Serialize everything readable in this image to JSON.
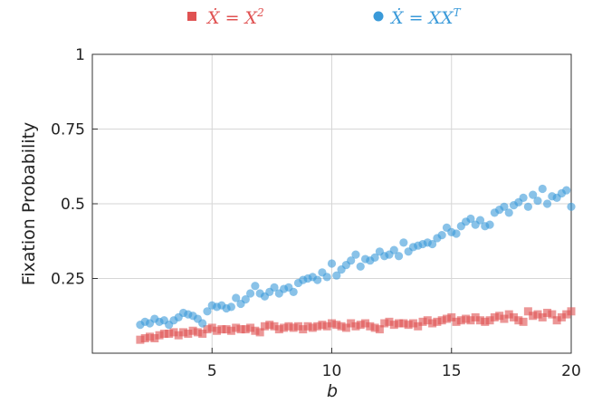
{
  "chart_data": {
    "type": "scatter",
    "xlabel": "b",
    "ylabel": "Fixation Probability",
    "xlim": [
      0,
      20
    ],
    "ylim": [
      0,
      1
    ],
    "xticks": [
      5,
      10,
      15,
      20
    ],
    "yticks": [
      0.25,
      0.5,
      0.75,
      1
    ],
    "xtick_labels": [
      "5",
      "10",
      "15",
      "20"
    ],
    "ytick_labels": [
      "0.25",
      "0.5",
      "0.75",
      "1"
    ],
    "grid": true,
    "legend_position": "top",
    "series": [
      {
        "name": "Ẋ = X²",
        "name_base": "Ẋ = X",
        "name_sup": "2",
        "marker": "square",
        "color": "#e05252",
        "x": [
          2.0,
          2.2,
          2.4,
          2.6,
          2.8,
          3.0,
          3.2,
          3.4,
          3.6,
          3.8,
          4.0,
          4.2,
          4.4,
          4.6,
          4.8,
          5.0,
          5.2,
          5.4,
          5.6,
          5.8,
          6.0,
          6.2,
          6.4,
          6.6,
          6.8,
          7.0,
          7.2,
          7.4,
          7.6,
          7.8,
          8.0,
          8.2,
          8.4,
          8.6,
          8.8,
          9.0,
          9.2,
          9.4,
          9.6,
          9.8,
          10.0,
          10.2,
          10.4,
          10.6,
          10.8,
          11.0,
          11.2,
          11.4,
          11.6,
          11.8,
          12.0,
          12.2,
          12.4,
          12.6,
          12.8,
          13.0,
          13.2,
          13.4,
          13.6,
          13.8,
          14.0,
          14.2,
          14.4,
          14.6,
          14.8,
          15.0,
          15.2,
          15.4,
          15.6,
          15.8,
          16.0,
          16.2,
          16.4,
          16.6,
          16.8,
          17.0,
          17.2,
          17.4,
          17.6,
          17.8,
          18.0,
          18.2,
          18.4,
          18.6,
          18.8,
          19.0,
          19.2,
          19.4,
          19.6,
          19.8,
          20.0
        ],
        "y": [
          0.045,
          0.05,
          0.055,
          0.05,
          0.06,
          0.065,
          0.065,
          0.07,
          0.06,
          0.07,
          0.065,
          0.075,
          0.07,
          0.065,
          0.08,
          0.085,
          0.075,
          0.08,
          0.08,
          0.075,
          0.085,
          0.08,
          0.08,
          0.085,
          0.075,
          0.07,
          0.09,
          0.095,
          0.09,
          0.08,
          0.085,
          0.09,
          0.085,
          0.09,
          0.08,
          0.09,
          0.085,
          0.09,
          0.095,
          0.09,
          0.1,
          0.095,
          0.09,
          0.085,
          0.1,
          0.09,
          0.095,
          0.1,
          0.09,
          0.085,
          0.08,
          0.1,
          0.105,
          0.095,
          0.1,
          0.1,
          0.095,
          0.1,
          0.09,
          0.105,
          0.11,
          0.1,
          0.105,
          0.11,
          0.115,
          0.12,
          0.105,
          0.11,
          0.115,
          0.11,
          0.12,
          0.11,
          0.105,
          0.11,
          0.12,
          0.125,
          0.115,
          0.13,
          0.12,
          0.11,
          0.105,
          0.14,
          0.125,
          0.13,
          0.12,
          0.135,
          0.13,
          0.11,
          0.12,
          0.13,
          0.14
        ]
      },
      {
        "name": "Ẋ = XXᵀ",
        "name_base": "Ẋ = XX",
        "name_sup": "T",
        "marker": "circle",
        "color": "#3a9ad9",
        "x": [
          2.0,
          2.2,
          2.4,
          2.6,
          2.8,
          3.0,
          3.2,
          3.4,
          3.6,
          3.8,
          4.0,
          4.2,
          4.4,
          4.6,
          4.8,
          5.0,
          5.2,
          5.4,
          5.6,
          5.8,
          6.0,
          6.2,
          6.4,
          6.6,
          6.8,
          7.0,
          7.2,
          7.4,
          7.6,
          7.8,
          8.0,
          8.2,
          8.4,
          8.6,
          8.8,
          9.0,
          9.2,
          9.4,
          9.6,
          9.8,
          10.0,
          10.2,
          10.4,
          10.6,
          10.8,
          11.0,
          11.2,
          11.4,
          11.6,
          11.8,
          12.0,
          12.2,
          12.4,
          12.6,
          12.8,
          13.0,
          13.2,
          13.4,
          13.6,
          13.8,
          14.0,
          14.2,
          14.4,
          14.6,
          14.8,
          15.0,
          15.2,
          15.4,
          15.6,
          15.8,
          16.0,
          16.2,
          16.4,
          16.6,
          16.8,
          17.0,
          17.2,
          17.4,
          17.6,
          17.8,
          18.0,
          18.2,
          18.4,
          18.6,
          18.8,
          19.0,
          19.2,
          19.4,
          19.6,
          19.8,
          20.0
        ],
        "y": [
          0.095,
          0.105,
          0.1,
          0.115,
          0.105,
          0.11,
          0.095,
          0.11,
          0.12,
          0.135,
          0.13,
          0.125,
          0.115,
          0.1,
          0.14,
          0.16,
          0.155,
          0.16,
          0.15,
          0.155,
          0.185,
          0.165,
          0.18,
          0.2,
          0.225,
          0.2,
          0.19,
          0.205,
          0.22,
          0.2,
          0.215,
          0.22,
          0.205,
          0.235,
          0.245,
          0.25,
          0.255,
          0.245,
          0.27,
          0.255,
          0.3,
          0.26,
          0.28,
          0.295,
          0.31,
          0.33,
          0.29,
          0.315,
          0.31,
          0.32,
          0.34,
          0.325,
          0.33,
          0.345,
          0.325,
          0.37,
          0.34,
          0.355,
          0.36,
          0.365,
          0.37,
          0.365,
          0.385,
          0.395,
          0.42,
          0.405,
          0.4,
          0.425,
          0.44,
          0.45,
          0.43,
          0.445,
          0.425,
          0.43,
          0.47,
          0.48,
          0.49,
          0.47,
          0.495,
          0.505,
          0.52,
          0.49,
          0.53,
          0.51,
          0.55,
          0.5,
          0.525,
          0.52,
          0.535,
          0.545,
          0.49
        ]
      }
    ]
  }
}
